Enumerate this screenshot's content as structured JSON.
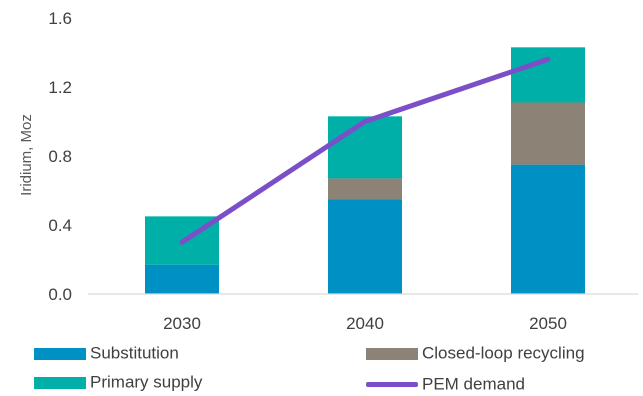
{
  "chart_data": {
    "type": "bar",
    "stacked": true,
    "categories": [
      "2030",
      "2040",
      "2050"
    ],
    "series": [
      {
        "name": "Substitution",
        "kind": "bar",
        "color": "#0091c4",
        "values": [
          0.17,
          0.55,
          0.75
        ]
      },
      {
        "name": "Closed-loop recycling",
        "kind": "bar",
        "color": "#8c8276",
        "values": [
          0.0,
          0.12,
          0.36
        ]
      },
      {
        "name": "Primary supply",
        "kind": "bar",
        "color": "#00b0a8",
        "values": [
          0.28,
          0.36,
          0.32
        ]
      },
      {
        "name": "PEM demand",
        "kind": "line",
        "color": "#7a4fc8",
        "values": [
          0.3,
          1.0,
          1.36
        ]
      }
    ],
    "ylabel": "Iridium, Moz",
    "ylim": [
      0,
      1.6
    ],
    "yticks": [
      0.0,
      0.4,
      0.8,
      1.2,
      1.6
    ],
    "ytick_labels": [
      "0.0",
      "0.4",
      "0.8",
      "1.2",
      "1.6"
    ],
    "grid": false,
    "legend_position": "bottom"
  },
  "legend": {
    "substitution": "Substitution",
    "closed_loop": "Closed-loop recycling",
    "primary_supply": "Primary supply",
    "pem_demand": "PEM demand"
  },
  "colors": {
    "substitution": "#0091c4",
    "closed_loop": "#8c8276",
    "primary_supply": "#00b0a8",
    "pem_demand": "#7a4fc8",
    "axis": "#d9d9d9"
  }
}
